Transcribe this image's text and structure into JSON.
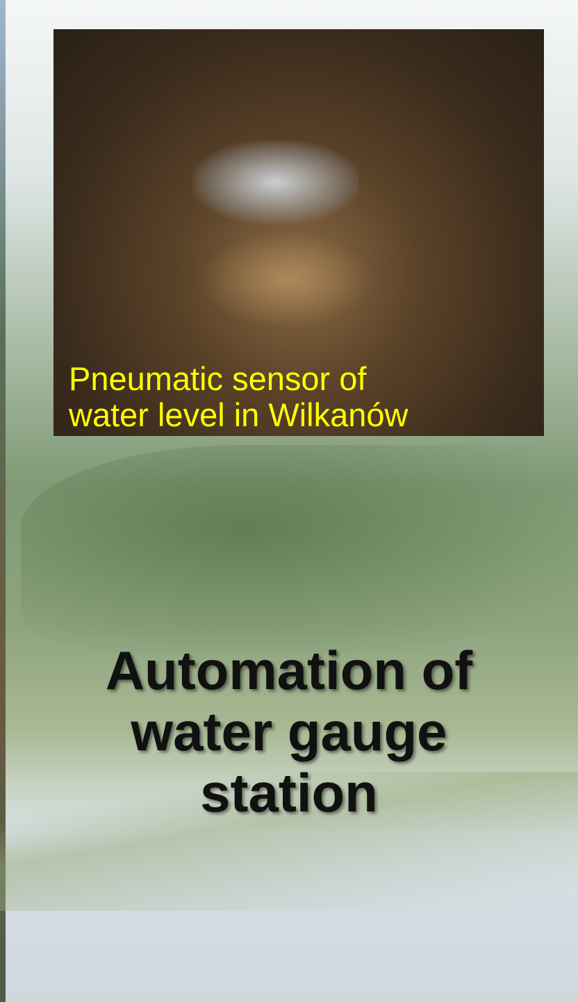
{
  "photo": {
    "caption": [
      "Pneumatic sensor of",
      "water level in Wilkanów"
    ]
  },
  "title": [
    "Automation of",
    "water gauge",
    "station"
  ]
}
